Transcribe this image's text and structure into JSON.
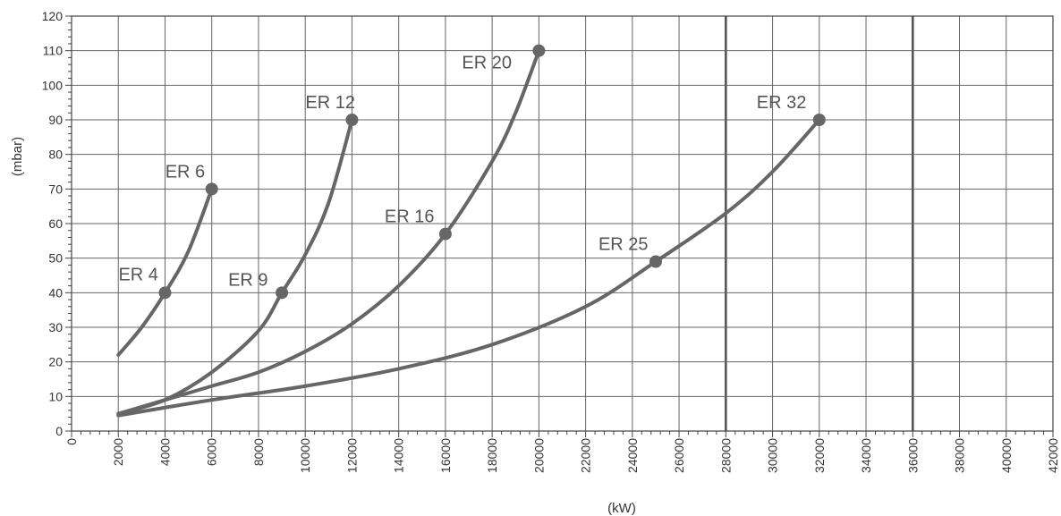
{
  "chart_data": {
    "type": "line",
    "xlabel": "(kW)",
    "ylabel": "(mbar)",
    "xlim": [
      0,
      42000
    ],
    "ylim": [
      0,
      120
    ],
    "x_ticks": [
      0,
      2000,
      4000,
      6000,
      8000,
      10000,
      12000,
      14000,
      16000,
      18000,
      20000,
      22000,
      24000,
      26000,
      28000,
      30000,
      32000,
      34000,
      36000,
      38000,
      40000,
      42000
    ],
    "x_tick_labels": [
      "0",
      "2000",
      "4000",
      "6000",
      "8000",
      "10000",
      "12000",
      "14000",
      "16000",
      "18000",
      "20000",
      "22000",
      "24000",
      "26000",
      "28000",
      "30000",
      "32000",
      "34000",
      "36000",
      "38000",
      "40000",
      "42000"
    ],
    "y_ticks": [
      0,
      10,
      20,
      30,
      40,
      50,
      60,
      70,
      80,
      90,
      100,
      110,
      120
    ],
    "y_tick_labels": [
      "0",
      "10",
      "20",
      "30",
      "40",
      "50",
      "60",
      "70",
      "80",
      "90",
      "100",
      "110",
      "120"
    ],
    "grid": true,
    "emphasized_vlines": [
      28000,
      36000
    ],
    "series": [
      {
        "points": [
          [
            2000,
            22
          ],
          [
            3000,
            30
          ],
          [
            4000,
            40
          ],
          [
            5000,
            52
          ],
          [
            6000,
            70
          ]
        ],
        "markers": [
          {
            "x": 4000,
            "y": 40,
            "label": "ER 4"
          },
          {
            "x": 6000,
            "y": 70,
            "label": "ER 6"
          }
        ]
      },
      {
        "points": [
          [
            2000,
            5
          ],
          [
            4000,
            9
          ],
          [
            6000,
            17
          ],
          [
            8000,
            29
          ],
          [
            9000,
            40
          ],
          [
            10000,
            51
          ],
          [
            11000,
            66
          ],
          [
            12000,
            90
          ]
        ],
        "markers": [
          {
            "x": 9000,
            "y": 40,
            "label": "ER 9"
          },
          {
            "x": 12000,
            "y": 90,
            "label": "ER 12"
          }
        ]
      },
      {
        "points": [
          [
            2000,
            5
          ],
          [
            4000,
            9
          ],
          [
            6000,
            13
          ],
          [
            8000,
            17
          ],
          [
            10000,
            23
          ],
          [
            12000,
            31
          ],
          [
            14000,
            42
          ],
          [
            16000,
            57
          ],
          [
            18000,
            78
          ],
          [
            19000,
            92
          ],
          [
            20000,
            110
          ]
        ],
        "markers": [
          {
            "x": 16000,
            "y": 57,
            "label": "ER 16"
          },
          {
            "x": 20000,
            "y": 110,
            "label": "ER 20"
          }
        ]
      },
      {
        "points": [
          [
            2000,
            4.5
          ],
          [
            6000,
            9
          ],
          [
            10000,
            13
          ],
          [
            14000,
            18
          ],
          [
            18000,
            25
          ],
          [
            22000,
            36
          ],
          [
            25000,
            49
          ],
          [
            28000,
            63
          ],
          [
            30000,
            75
          ],
          [
            32000,
            90
          ]
        ],
        "markers": [
          {
            "x": 25000,
            "y": 49,
            "label": "ER 25"
          },
          {
            "x": 32000,
            "y": 90,
            "label": "ER 32"
          }
        ]
      }
    ],
    "colors": {
      "curve": "#666666",
      "grid": "#666666",
      "emphasized_grid": "#555555",
      "text": "#333333"
    }
  }
}
